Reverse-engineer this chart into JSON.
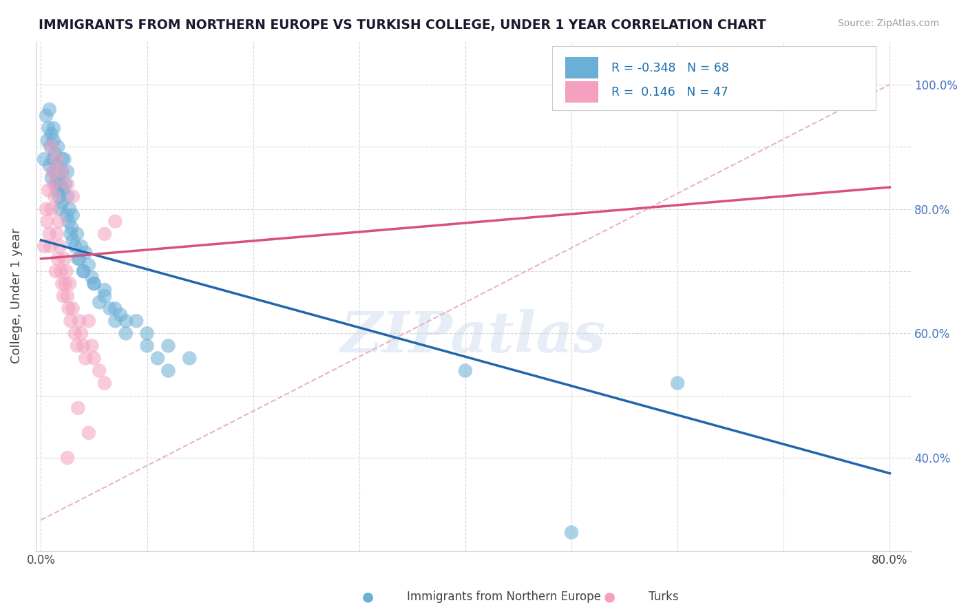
{
  "title": "IMMIGRANTS FROM NORTHERN EUROPE VS TURKISH COLLEGE, UNDER 1 YEAR CORRELATION CHART",
  "source": "Source: ZipAtlas.com",
  "ylabel": "College, Under 1 year",
  "legend_blue_r": "-0.348",
  "legend_blue_n": "68",
  "legend_pink_r": "0.146",
  "legend_pink_n": "47",
  "legend_blue_label": "Immigrants from Northern Europe",
  "legend_pink_label": "Turks",
  "blue_color": "#6baed6",
  "pink_color": "#f4a0be",
  "blue_line_color": "#2166ac",
  "pink_line_color": "#d9507a",
  "trendline_color": "#e8b4c0",
  "watermark": "ZIPatlas",
  "blue_line_x0": 0.0,
  "blue_line_y0": 0.75,
  "blue_line_x1": 0.8,
  "blue_line_y1": 0.375,
  "pink_line_x0": 0.0,
  "pink_line_y0": 0.72,
  "pink_line_x1": 0.8,
  "pink_line_y1": 0.835,
  "diag_line_x0": 0.0,
  "diag_line_y0": 0.3,
  "diag_line_x1": 0.8,
  "diag_line_y1": 1.0,
  "blue_scatter_x": [
    0.003,
    0.005,
    0.006,
    0.007,
    0.008,
    0.009,
    0.01,
    0.01,
    0.011,
    0.012,
    0.012,
    0.013,
    0.014,
    0.015,
    0.015,
    0.016,
    0.017,
    0.018,
    0.019,
    0.02,
    0.02,
    0.021,
    0.022,
    0.023,
    0.024,
    0.025,
    0.026,
    0.027,
    0.028,
    0.029,
    0.03,
    0.032,
    0.034,
    0.036,
    0.038,
    0.04,
    0.042,
    0.045,
    0.048,
    0.05,
    0.055,
    0.06,
    0.065,
    0.07,
    0.075,
    0.08,
    0.09,
    0.1,
    0.11,
    0.12,
    0.008,
    0.012,
    0.016,
    0.02,
    0.025,
    0.03,
    0.035,
    0.04,
    0.05,
    0.06,
    0.07,
    0.08,
    0.1,
    0.12,
    0.14,
    0.4,
    0.6,
    0.5
  ],
  "blue_scatter_y": [
    0.88,
    0.95,
    0.91,
    0.93,
    0.87,
    0.9,
    0.85,
    0.92,
    0.88,
    0.86,
    0.91,
    0.89,
    0.84,
    0.87,
    0.83,
    0.85,
    0.82,
    0.8,
    0.84,
    0.81,
    0.86,
    0.83,
    0.88,
    0.84,
    0.79,
    0.82,
    0.78,
    0.8,
    0.76,
    0.77,
    0.79,
    0.74,
    0.76,
    0.72,
    0.74,
    0.7,
    0.73,
    0.71,
    0.69,
    0.68,
    0.65,
    0.67,
    0.64,
    0.62,
    0.63,
    0.6,
    0.62,
    0.58,
    0.56,
    0.54,
    0.96,
    0.93,
    0.9,
    0.88,
    0.86,
    0.75,
    0.72,
    0.7,
    0.68,
    0.66,
    0.64,
    0.62,
    0.6,
    0.58,
    0.56,
    0.54,
    0.52,
    0.28
  ],
  "pink_scatter_x": [
    0.003,
    0.005,
    0.006,
    0.007,
    0.008,
    0.009,
    0.01,
    0.011,
    0.012,
    0.013,
    0.014,
    0.015,
    0.016,
    0.017,
    0.018,
    0.019,
    0.02,
    0.021,
    0.022,
    0.023,
    0.024,
    0.025,
    0.026,
    0.027,
    0.028,
    0.03,
    0.032,
    0.034,
    0.036,
    0.038,
    0.04,
    0.042,
    0.045,
    0.048,
    0.05,
    0.055,
    0.06,
    0.01,
    0.015,
    0.02,
    0.025,
    0.03,
    0.07,
    0.06,
    0.035,
    0.045,
    0.025
  ],
  "pink_scatter_y": [
    0.74,
    0.8,
    0.78,
    0.83,
    0.76,
    0.74,
    0.8,
    0.86,
    0.84,
    0.82,
    0.7,
    0.76,
    0.72,
    0.78,
    0.74,
    0.7,
    0.68,
    0.66,
    0.72,
    0.68,
    0.7,
    0.66,
    0.64,
    0.68,
    0.62,
    0.64,
    0.6,
    0.58,
    0.62,
    0.6,
    0.58,
    0.56,
    0.62,
    0.58,
    0.56,
    0.54,
    0.52,
    0.9,
    0.88,
    0.86,
    0.84,
    0.82,
    0.78,
    0.76,
    0.48,
    0.44,
    0.4
  ],
  "xlim": [
    -0.005,
    0.82
  ],
  "ylim": [
    0.25,
    1.07
  ],
  "x_tick_positions": [
    0.0,
    0.1,
    0.2,
    0.3,
    0.4,
    0.5,
    0.6,
    0.7,
    0.8
  ],
  "y_tick_positions": [
    0.4,
    0.5,
    0.6,
    0.7,
    0.8,
    0.9,
    1.0
  ],
  "y_right_labels": [
    "40.0%",
    "",
    "60.0%",
    "",
    "80.0%",
    "",
    "100.0%"
  ]
}
